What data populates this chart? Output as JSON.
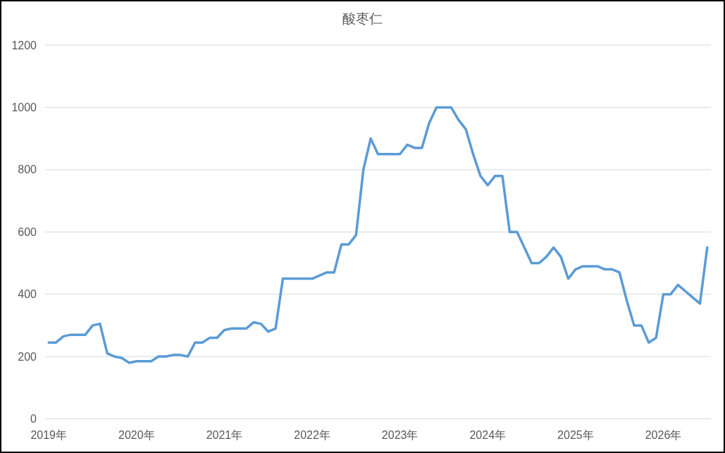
{
  "chart_data": {
    "type": "line",
    "title": "酸枣仁",
    "categories": [
      "2019年",
      null,
      null,
      null,
      null,
      null,
      null,
      null,
      null,
      null,
      null,
      null,
      "2020年",
      null,
      null,
      null,
      null,
      null,
      null,
      null,
      null,
      null,
      null,
      null,
      "2021年",
      null,
      null,
      null,
      null,
      null,
      null,
      null,
      null,
      null,
      null,
      null,
      "2022年",
      null,
      null,
      null,
      null,
      null,
      null,
      null,
      null,
      null,
      null,
      null,
      "2023年",
      null,
      null,
      null,
      null,
      null,
      null,
      null,
      null,
      null,
      null,
      null,
      "2024年",
      null,
      null,
      null,
      null,
      null,
      null,
      null,
      null,
      null,
      null,
      null,
      "2025年",
      null,
      null,
      null,
      null,
      null,
      null,
      null,
      null,
      null,
      null,
      null,
      "2026年",
      null,
      null,
      null,
      null,
      null,
      null
    ],
    "values": [
      245,
      245,
      265,
      270,
      270,
      270,
      300,
      305,
      210,
      200,
      195,
      180,
      185,
      185,
      185,
      200,
      200,
      205,
      205,
      200,
      245,
      245,
      260,
      260,
      285,
      290,
      290,
      290,
      310,
      305,
      280,
      290,
      450,
      450,
      450,
      450,
      450,
      460,
      470,
      470,
      560,
      560,
      590,
      800,
      900,
      850,
      850,
      850,
      850,
      880,
      870,
      870,
      950,
      1000,
      1000,
      1000,
      960,
      930,
      850,
      780,
      750,
      780,
      780,
      600,
      600,
      550,
      500,
      500,
      520,
      550,
      520,
      450,
      480,
      490,
      490,
      490,
      480,
      480,
      470,
      380,
      300,
      300,
      245,
      260,
      400,
      400,
      430,
      410,
      390,
      370,
      550
    ],
    "color": "#5b9bd5",
    "ylim": [
      0,
      1200
    ],
    "yticks": [
      0,
      200,
      400,
      600,
      800,
      1000,
      1200
    ],
    "grid": "y"
  }
}
